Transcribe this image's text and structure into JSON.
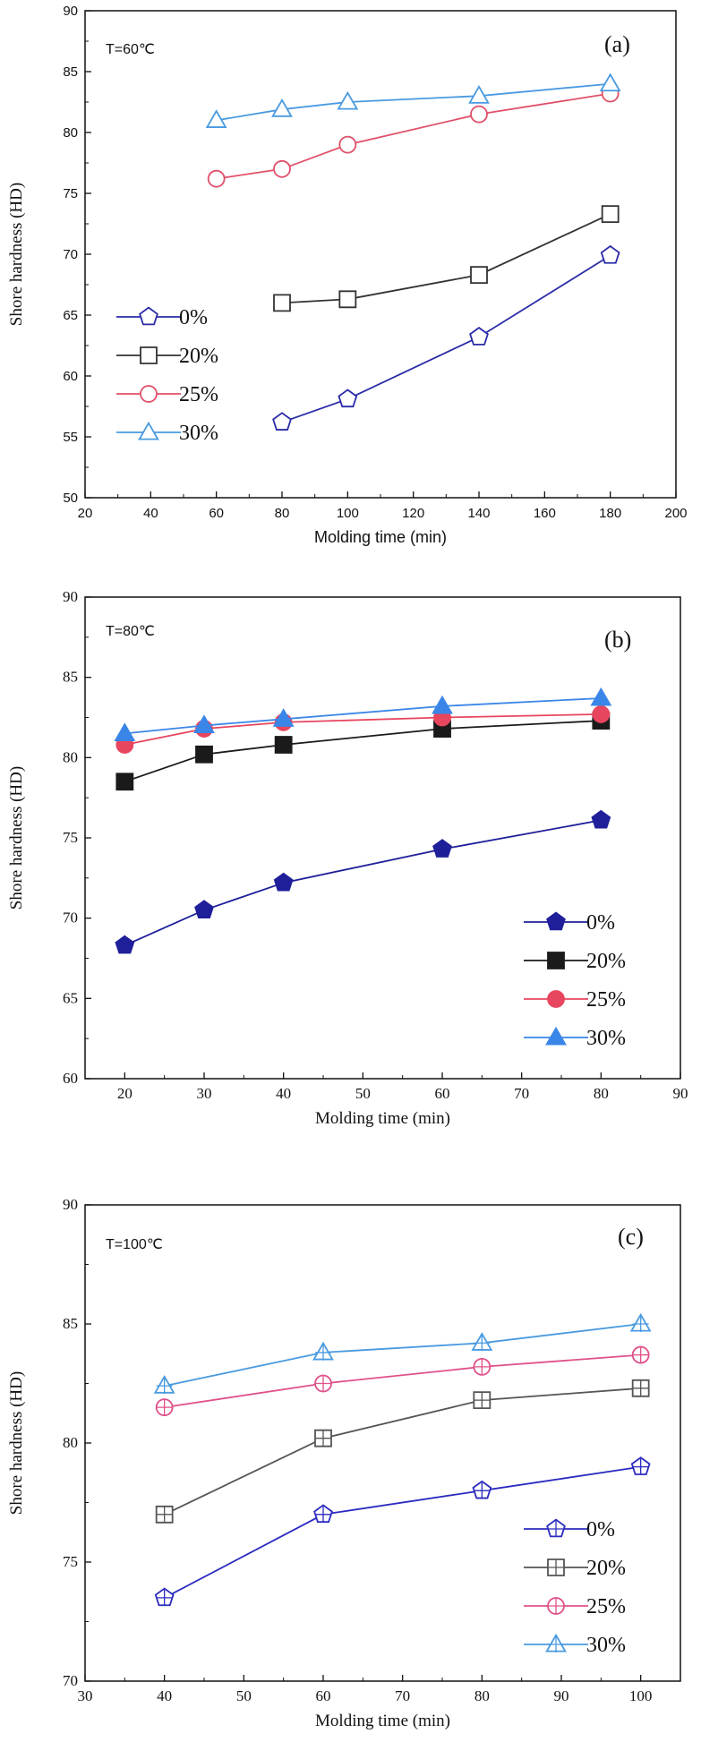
{
  "chart_data": [
    {
      "type": "line",
      "panel_label": "(a)",
      "annotation": "T=60℃",
      "xlabel": "Molding time (min)",
      "ylabel": "Shore hardness (HD)",
      "xlim": [
        20,
        200
      ],
      "ylim": [
        50,
        90
      ],
      "x_ticks": [
        20,
        40,
        60,
        80,
        100,
        120,
        140,
        160,
        180,
        200
      ],
      "y_ticks": [
        50,
        55,
        60,
        65,
        70,
        75,
        80,
        85,
        90
      ],
      "marker_style": "open",
      "legend_position": "left",
      "series": [
        {
          "name": "0%",
          "marker": "pentagon",
          "color": "#2b2ba8",
          "x": [
            80,
            100,
            140,
            180
          ],
          "y": [
            56.2,
            58.1,
            63.2,
            69.9
          ]
        },
        {
          "name": "20%",
          "marker": "square",
          "color": "#333333",
          "x": [
            80,
            100,
            140,
            180
          ],
          "y": [
            66.0,
            66.3,
            68.3,
            73.3
          ]
        },
        {
          "name": "25%",
          "marker": "circle",
          "color": "#e0506a",
          "x": [
            60,
            80,
            100,
            140,
            180
          ],
          "y": [
            76.2,
            77.0,
            79.0,
            81.5,
            83.2
          ]
        },
        {
          "name": "30%",
          "marker": "triangle",
          "color": "#4a9ae0",
          "x": [
            60,
            80,
            100,
            140,
            180
          ],
          "y": [
            81.0,
            81.9,
            82.5,
            83.0,
            84.0
          ]
        }
      ]
    },
    {
      "type": "line",
      "panel_label": "(b)",
      "annotation": "T=80℃",
      "xlabel": "Molding time (min)",
      "ylabel": "Shore hardness (HD)",
      "xlim": [
        15,
        90
      ],
      "ylim": [
        60,
        90
      ],
      "x_ticks": [
        20,
        30,
        40,
        50,
        60,
        70,
        80,
        90
      ],
      "y_ticks": [
        60,
        65,
        70,
        75,
        80,
        85,
        90
      ],
      "marker_style": "filled",
      "legend_position": "bottom-right",
      "series": [
        {
          "name": "0%",
          "marker": "pentagon",
          "color": "#1f1f9a",
          "x": [
            20,
            30,
            40,
            60,
            80
          ],
          "y": [
            68.3,
            70.5,
            72.2,
            74.3,
            76.1
          ]
        },
        {
          "name": "20%",
          "marker": "square",
          "color": "#1a1a1a",
          "x": [
            20,
            30,
            40,
            60,
            80
          ],
          "y": [
            78.5,
            80.2,
            80.8,
            81.8,
            82.3
          ]
        },
        {
          "name": "25%",
          "marker": "circle",
          "color": "#e8455e",
          "x": [
            20,
            30,
            40,
            60,
            80
          ],
          "y": [
            80.8,
            81.8,
            82.2,
            82.5,
            82.7
          ]
        },
        {
          "name": "30%",
          "marker": "triangle",
          "color": "#3a86e8",
          "x": [
            20,
            30,
            40,
            60,
            80
          ],
          "y": [
            81.5,
            82.0,
            82.4,
            83.2,
            83.7
          ]
        }
      ]
    },
    {
      "type": "line",
      "panel_label": "(c)",
      "annotation": "T=100℃",
      "xlabel": "Molding time (min)",
      "ylabel": "Shore hardness (HD)",
      "xlim": [
        30,
        105
      ],
      "ylim": [
        70,
        90
      ],
      "x_ticks": [
        30,
        40,
        50,
        60,
        70,
        80,
        90,
        100
      ],
      "y_ticks": [
        70,
        75,
        80,
        85,
        90
      ],
      "marker_style": "crossed",
      "legend_position": "bottom-right",
      "series": [
        {
          "name": "0%",
          "marker": "pentagon",
          "color": "#2b2bc0",
          "x": [
            40,
            60,
            80,
            100
          ],
          "y": [
            73.5,
            77.0,
            78.0,
            79.0
          ]
        },
        {
          "name": "20%",
          "marker": "square",
          "color": "#555555",
          "x": [
            40,
            60,
            80,
            100
          ],
          "y": [
            77.0,
            80.2,
            81.8,
            82.3
          ]
        },
        {
          "name": "25%",
          "marker": "circle",
          "color": "#e0508a",
          "x": [
            40,
            60,
            80,
            100
          ],
          "y": [
            81.5,
            82.5,
            83.2,
            83.7
          ]
        },
        {
          "name": "30%",
          "marker": "triangle",
          "color": "#4a9ae0",
          "x": [
            40,
            60,
            80,
            100
          ],
          "y": [
            82.4,
            83.8,
            84.2,
            85.0
          ]
        }
      ]
    }
  ]
}
